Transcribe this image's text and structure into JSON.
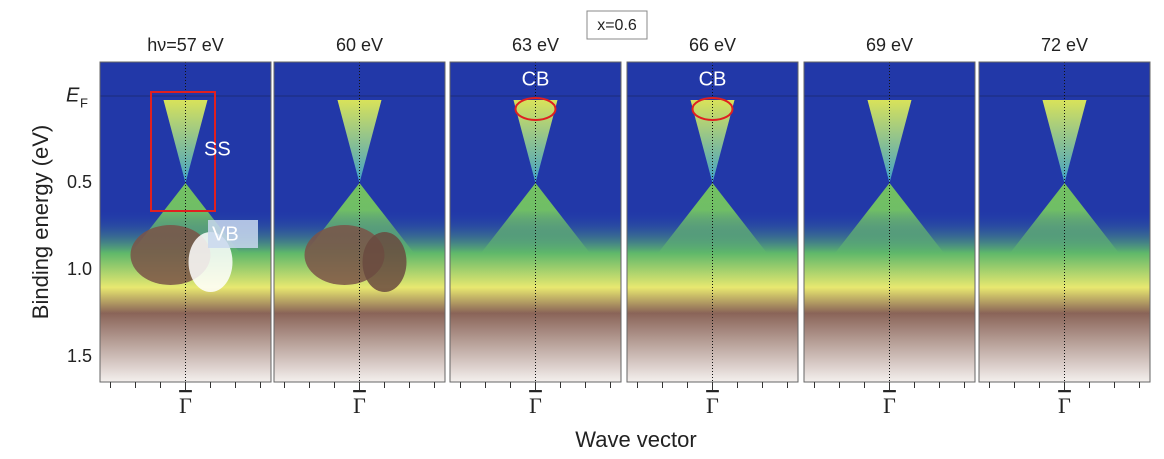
{
  "inset_label": "x=0.6",
  "y_axis": {
    "label": "Binding energy (eV)",
    "fermi": {
      "symbol": "E",
      "subscript": "F"
    },
    "ticks": [
      "0.5",
      "1.0",
      "1.5"
    ]
  },
  "x_axis": {
    "label": "Wave vector"
  },
  "panels": [
    {
      "title": "hν=57 eV",
      "x_tick": "Γ",
      "annotations": [
        "SS",
        "VB"
      ]
    },
    {
      "title": "60 eV",
      "x_tick": "Γ",
      "annotations": []
    },
    {
      "title": "63 eV",
      "x_tick": "Γ",
      "annotations": [
        "CB"
      ]
    },
    {
      "title": "66 eV",
      "x_tick": "Γ",
      "annotations": [
        "CB"
      ]
    },
    {
      "title": "69 eV",
      "x_tick": "Γ",
      "annotations": []
    },
    {
      "title": "72 eV",
      "x_tick": "Γ",
      "annotations": []
    }
  ]
}
